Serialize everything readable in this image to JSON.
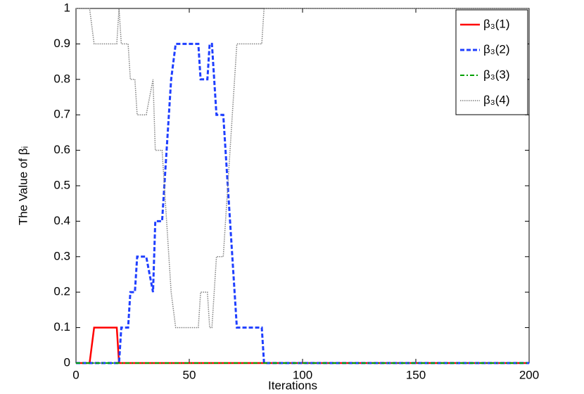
{
  "chart_data": {
    "type": "line",
    "xlabel": "Iterations",
    "ylabel": "The Value of βᵢ",
    "x": [
      0,
      6,
      8,
      18,
      19,
      20,
      23,
      24,
      26,
      27,
      31,
      34,
      35,
      38,
      39,
      40,
      41,
      42,
      44,
      54,
      55,
      58,
      59,
      60,
      61,
      62,
      65,
      66,
      67,
      68,
      69,
      70,
      71,
      82,
      83,
      200
    ],
    "series": [
      {
        "name": "β₃(1)",
        "color": "#ff0000",
        "linestyle": "solid",
        "values": [
          0,
          0,
          0.1,
          0.1,
          0,
          0,
          0,
          0,
          0,
          0,
          0,
          0,
          0,
          0,
          0,
          0,
          0,
          0,
          0,
          0,
          0,
          0,
          0,
          0,
          0,
          0,
          0,
          0,
          0,
          0,
          0,
          0,
          0,
          0,
          0,
          0
        ]
      },
      {
        "name": "β₃(2)",
        "color": "#1f3fff",
        "linestyle": "dashed",
        "values": [
          0,
          0,
          0,
          0,
          0,
          0.1,
          0.1,
          0.2,
          0.2,
          0.3,
          0.3,
          0.2,
          0.4,
          0.4,
          0.5,
          0.6,
          0.7,
          0.8,
          0.9,
          0.9,
          0.8,
          0.8,
          0.9,
          0.9,
          0.8,
          0.7,
          0.7,
          0.6,
          0.5,
          0.4,
          0.3,
          0.2,
          0.1,
          0.1,
          0,
          0
        ]
      },
      {
        "name": "β₃(3)",
        "color": "#00a000",
        "linestyle": "dashdot",
        "values": [
          0,
          0,
          0,
          0,
          0,
          0,
          0,
          0,
          0,
          0,
          0,
          0,
          0,
          0,
          0,
          0,
          0,
          0,
          0,
          0,
          0,
          0,
          0,
          0,
          0,
          0,
          0,
          0,
          0,
          0,
          0,
          0,
          0,
          0,
          0,
          0
        ]
      },
      {
        "name": "β₃(4)",
        "color": "#808080",
        "linestyle": "dotted",
        "values": [
          1,
          1,
          0.9,
          0.9,
          1,
          0.9,
          0.9,
          0.8,
          0.8,
          0.7,
          0.7,
          0.8,
          0.6,
          0.6,
          0.5,
          0.4,
          0.3,
          0.2,
          0.1,
          0.1,
          0.2,
          0.2,
          0.1,
          0.1,
          0.2,
          0.3,
          0.3,
          0.4,
          0.5,
          0.6,
          0.7,
          0.8,
          0.9,
          0.9,
          1,
          1
        ]
      }
    ],
    "xlim": [
      0,
      200
    ],
    "xticks": [
      0,
      50,
      100,
      150,
      200
    ],
    "ylim": [
      0,
      1
    ],
    "yticks": [
      0,
      0.1,
      0.2,
      0.3,
      0.4,
      0.5,
      0.6,
      0.7,
      0.8,
      0.9,
      1
    ],
    "grid": false,
    "legend": "upper right"
  }
}
